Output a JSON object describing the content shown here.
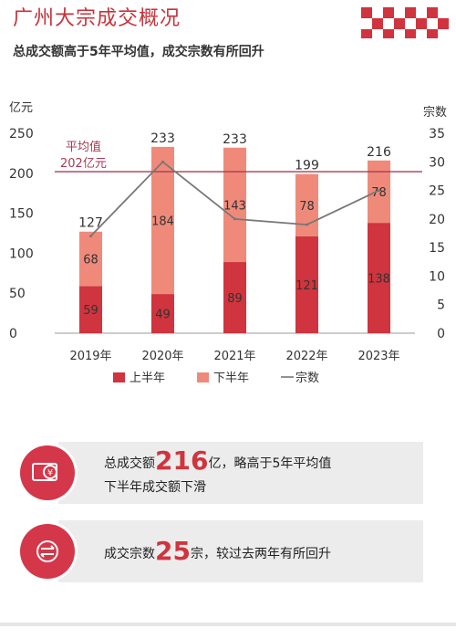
{
  "header": {
    "title": "广州大宗成交概况",
    "subtitle": "总成交额高于5年平均值，成交宗数有所回升"
  },
  "chart_data": {
    "type": "bar",
    "stacked": true,
    "categories": [
      "2019年",
      "2020年",
      "2021年",
      "2022年",
      "2023年"
    ],
    "series": [
      {
        "name": "上半年",
        "values": [
          59,
          49,
          89,
          121,
          138
        ],
        "color": "#d0343e"
      },
      {
        "name": "下半年",
        "values": [
          68,
          184,
          143,
          78,
          78
        ],
        "color": "#ef8a7b"
      }
    ],
    "totals": [
      127,
      233,
      233,
      199,
      216
    ],
    "line_series": {
      "name": "宗数",
      "values": [
        17,
        30,
        20,
        19,
        25
      ],
      "color": "#777777",
      "axis": "right"
    },
    "ylabel_left": "亿元",
    "ylabel_right": "宗数",
    "ylim_left": [
      0,
      250
    ],
    "ylim_right": [
      0,
      35
    ],
    "yticks_left": [
      0,
      50,
      100,
      150,
      200,
      250
    ],
    "yticks_right": [
      0,
      5,
      10,
      15,
      20,
      25,
      30,
      35
    ],
    "reference_line": {
      "value": 202,
      "label_line1": "平均值",
      "label_line2": "202亿元",
      "color": "#a83b55"
    },
    "legend": {
      "placement": "bottom",
      "items": [
        "上半年",
        "下半年",
        "宗数"
      ]
    },
    "grid": false
  },
  "info": [
    {
      "prefix": "总成交额",
      "value": "216",
      "suffix": "亿，略高于5年平均值",
      "line2": "下半年成交额下滑",
      "icon": "money-icon"
    },
    {
      "prefix": "成交宗数",
      "value": "25",
      "suffix": "宗，较过去两年有所回升",
      "icon": "transaction-icon"
    }
  ],
  "colors": {
    "accent": "#d0343e",
    "light": "#ef8a7b",
    "avg_line": "#a83b55"
  }
}
